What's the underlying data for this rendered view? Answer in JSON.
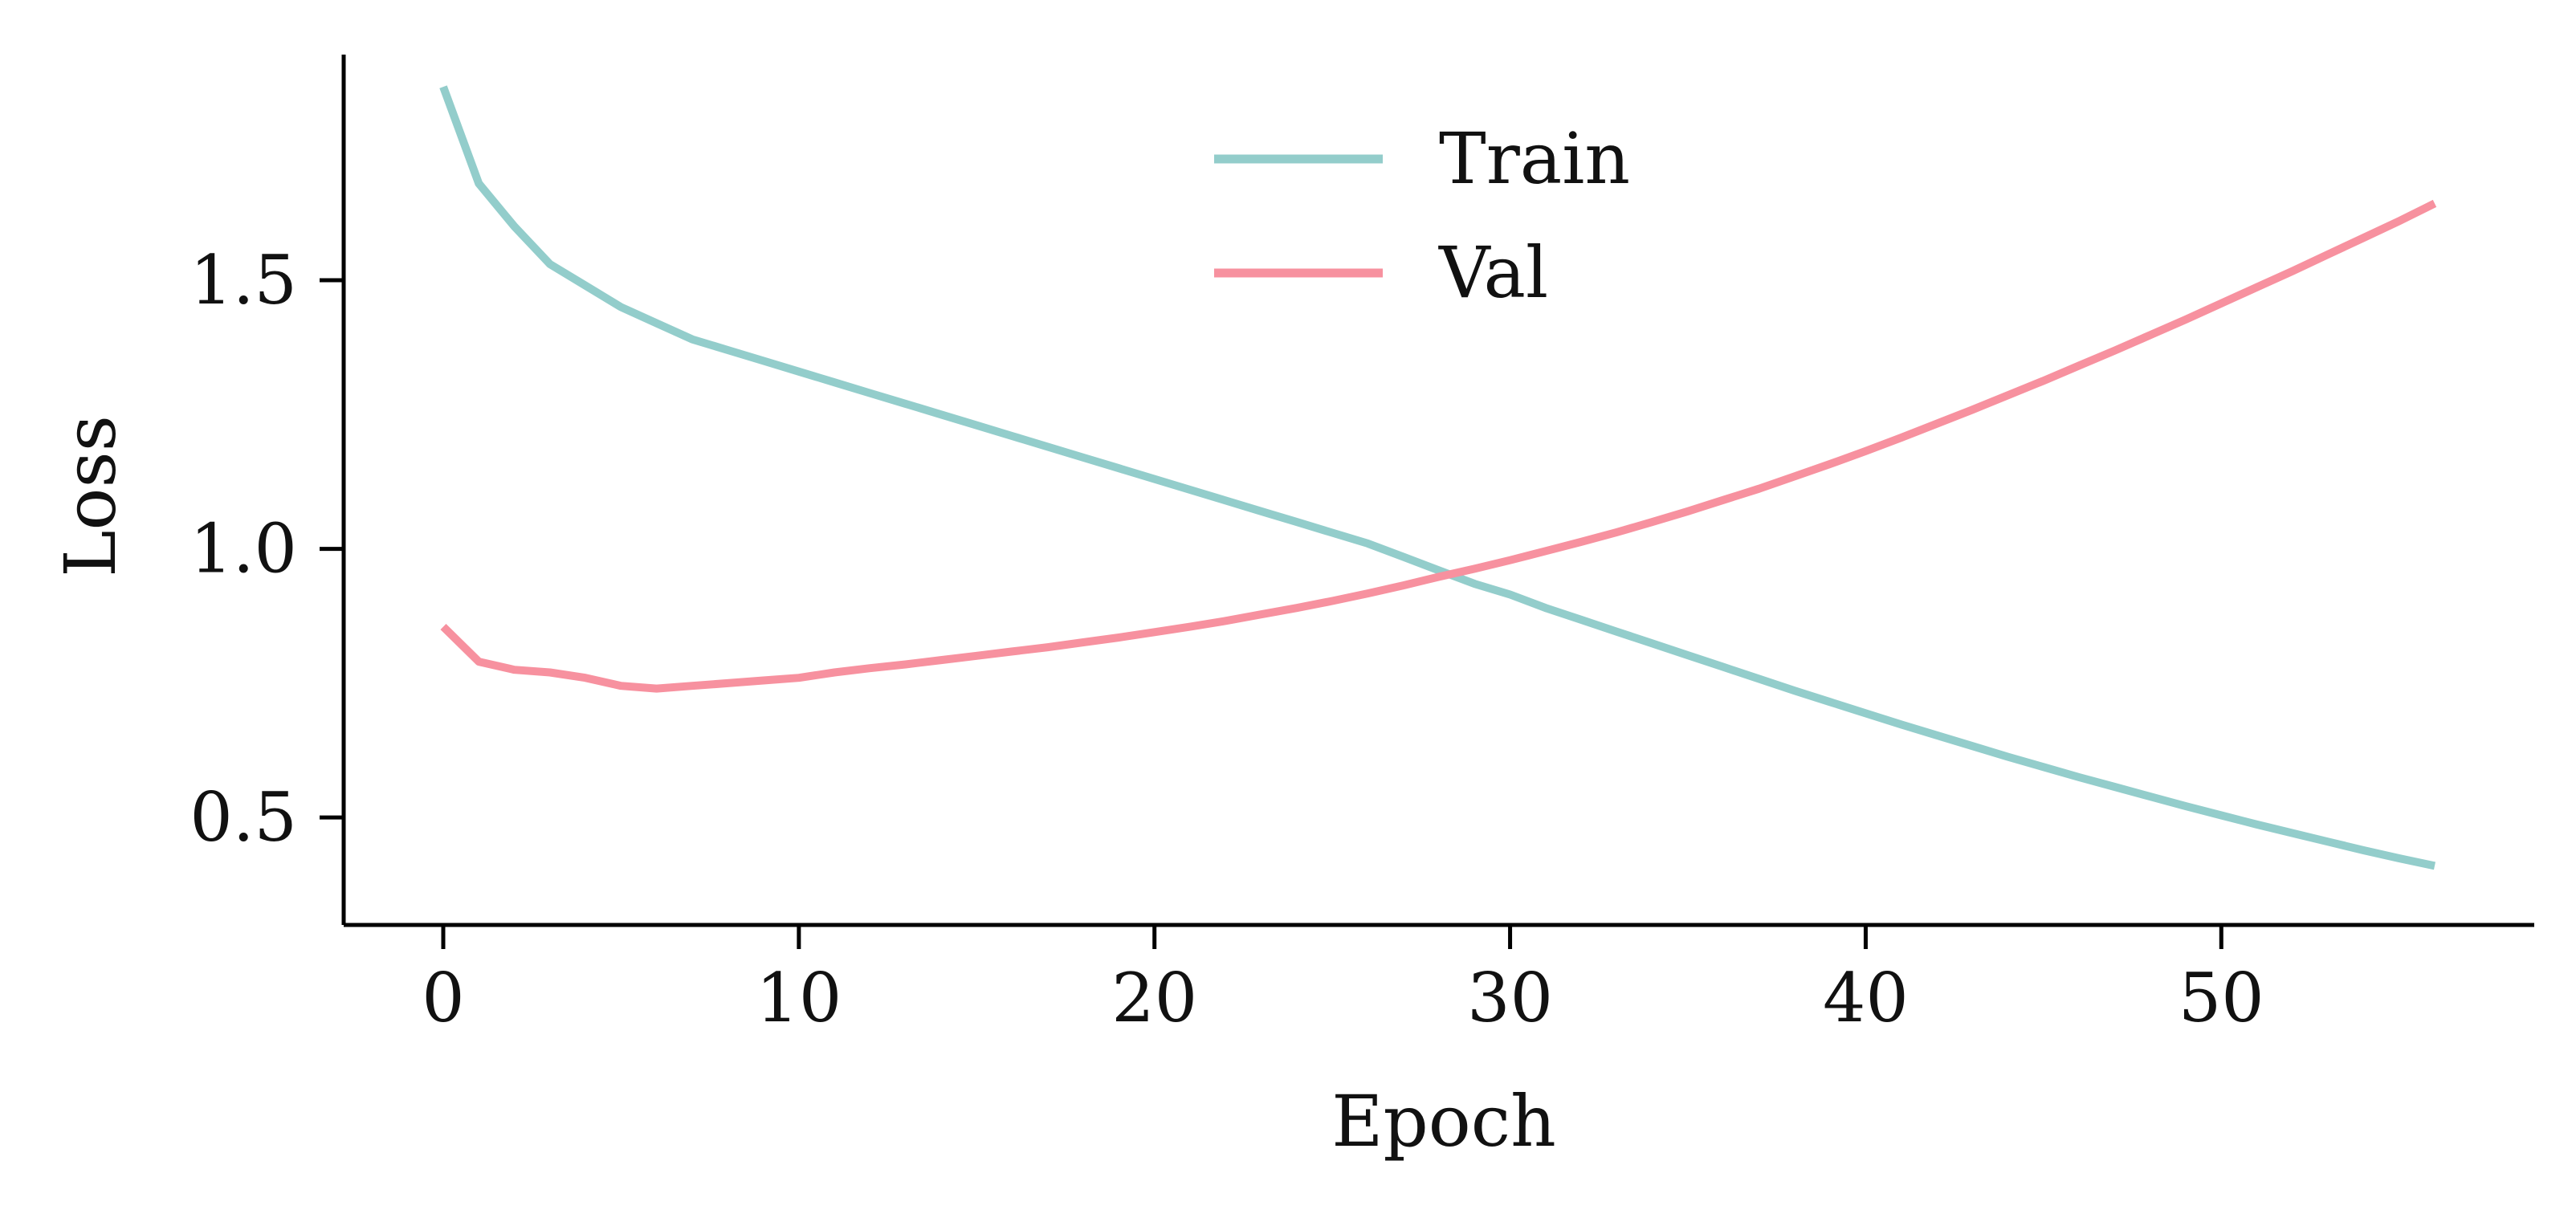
{
  "chart_data": {
    "type": "line",
    "xlabel": "Epoch",
    "ylabel": "Loss",
    "xlim": [
      -2.8,
      58.8
    ],
    "ylim": [
      0.3,
      1.92
    ],
    "x_ticks": [
      0,
      10,
      20,
      30,
      40,
      50
    ],
    "x_tick_labels": [
      "0",
      "10",
      "20",
      "30",
      "40",
      "50"
    ],
    "y_ticks": [
      0.5,
      1.0,
      1.5
    ],
    "y_tick_labels": [
      "0.5",
      "1.0",
      "1.5"
    ],
    "grid": false,
    "legend_position": "top-center",
    "x": [
      0,
      1,
      2,
      3,
      4,
      5,
      6,
      7,
      8,
      9,
      10,
      11,
      12,
      13,
      14,
      15,
      16,
      17,
      18,
      19,
      20,
      21,
      22,
      23,
      24,
      25,
      26,
      27,
      28,
      29,
      30,
      31,
      32,
      33,
      34,
      35,
      36,
      37,
      38,
      39,
      40,
      41,
      42,
      43,
      44,
      45,
      46,
      47,
      48,
      49,
      50,
      51,
      52,
      53,
      54,
      55,
      56
    ],
    "series": [
      {
        "name": "Train",
        "color": "#93cdcb",
        "values": [
          1.86,
          1.68,
          1.6,
          1.53,
          1.49,
          1.45,
          1.42,
          1.39,
          1.37,
          1.35,
          1.33,
          1.31,
          1.29,
          1.27,
          1.25,
          1.23,
          1.21,
          1.19,
          1.17,
          1.15,
          1.13,
          1.11,
          1.09,
          1.07,
          1.05,
          1.03,
          1.01,
          0.985,
          0.96,
          0.935,
          0.915,
          0.89,
          0.868,
          0.846,
          0.824,
          0.802,
          0.78,
          0.758,
          0.736,
          0.715,
          0.694,
          0.673,
          0.653,
          0.633,
          0.613,
          0.594,
          0.575,
          0.557,
          0.539,
          0.521,
          0.504,
          0.487,
          0.471,
          0.455,
          0.439,
          0.424,
          0.41
        ]
      },
      {
        "name": "Val",
        "color": "#f7919f",
        "values": [
          0.855,
          0.79,
          0.775,
          0.77,
          0.76,
          0.745,
          0.74,
          0.745,
          0.75,
          0.755,
          0.76,
          0.77,
          0.778,
          0.785,
          0.793,
          0.801,
          0.809,
          0.817,
          0.826,
          0.835,
          0.845,
          0.855,
          0.866,
          0.878,
          0.89,
          0.903,
          0.917,
          0.932,
          0.948,
          0.963,
          0.979,
          0.996,
          1.013,
          1.031,
          1.05,
          1.07,
          1.091,
          1.112,
          1.135,
          1.158,
          1.182,
          1.207,
          1.233,
          1.259,
          1.286,
          1.313,
          1.341,
          1.369,
          1.398,
          1.427,
          1.457,
          1.487,
          1.517,
          1.548,
          1.579,
          1.61,
          1.643
        ]
      }
    ]
  }
}
